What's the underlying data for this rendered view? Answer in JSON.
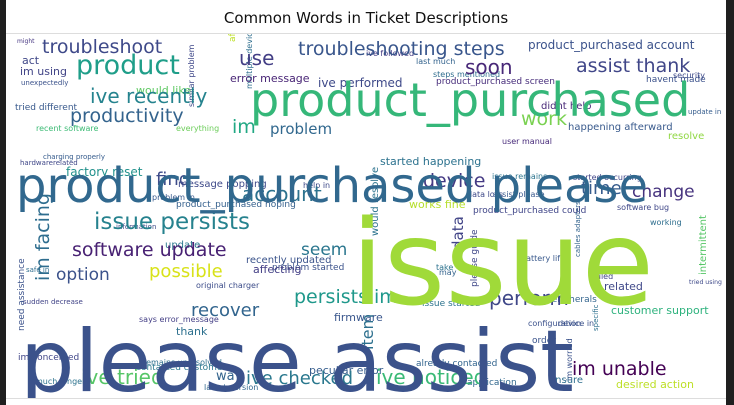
{
  "chart_data": {
    "type": "wordcloud",
    "title": "Common Words in Ticket Descriptions",
    "colormap": "viridis",
    "background": "#ffffff",
    "words": [
      {
        "text": "issue",
        "weight": 100,
        "color": "#a0da39"
      },
      {
        "text": "please assist",
        "weight": 92,
        "color": "#3b528b"
      },
      {
        "text": "product_purchased please",
        "weight": 70,
        "color": "#31688e"
      },
      {
        "text": "product_purchased",
        "weight": 52,
        "color": "#35b779"
      },
      {
        "text": "product",
        "weight": 28,
        "color": "#1f9e89"
      },
      {
        "text": "troubleshooting steps",
        "weight": 22,
        "color": "#39568c"
      },
      {
        "text": "issue persists",
        "weight": 24,
        "color": "#26828e"
      },
      {
        "text": "troubleshoot",
        "weight": 20,
        "color": "#3e4989"
      },
      {
        "text": "ive recently",
        "weight": 20,
        "color": "#25838e"
      },
      {
        "text": "productivity",
        "weight": 20,
        "color": "#33638d"
      },
      {
        "text": "software update",
        "weight": 19,
        "color": "#482173"
      },
      {
        "text": "assist thank",
        "weight": 18,
        "color": "#404688"
      },
      {
        "text": "ive noticed",
        "weight": 20,
        "color": "#3aba76"
      },
      {
        "text": "ive checked",
        "weight": 18,
        "color": "#2a788e"
      },
      {
        "text": "ive tried",
        "weight": 18,
        "color": "#56c667"
      },
      {
        "text": "im unable",
        "weight": 18,
        "color": "#440154"
      },
      {
        "text": "persists im",
        "weight": 17,
        "color": "#1f988b"
      },
      {
        "text": "account",
        "weight": 17,
        "color": "#2c728e"
      },
      {
        "text": "im facing",
        "weight": 19,
        "color": "#2e6d8e"
      },
      {
        "text": "perform",
        "weight": 17,
        "color": "#3f4788"
      },
      {
        "text": "device",
        "weight": 16,
        "color": "#443983"
      },
      {
        "text": "recover",
        "weight": 16,
        "color": "#32658e"
      },
      {
        "text": "possible",
        "weight": 16,
        "color": "#d8e219"
      },
      {
        "text": "option",
        "weight": 16,
        "color": "#3b528b"
      },
      {
        "text": "change",
        "weight": 15,
        "color": "#46337e"
      },
      {
        "text": "time",
        "weight": 15,
        "color": "#365c8d"
      },
      {
        "text": "use",
        "weight": 18,
        "color": "#433e85"
      },
      {
        "text": "soon",
        "weight": 16,
        "color": "#482878"
      },
      {
        "text": "work",
        "weight": 16,
        "color": "#7ad151"
      },
      {
        "text": "problem",
        "weight": 14,
        "color": "#31688e"
      },
      {
        "text": "seem",
        "weight": 15,
        "color": "#2a768e"
      },
      {
        "text": "find",
        "weight": 15,
        "color": "#3e4c8a"
      },
      {
        "text": "data",
        "weight": 14,
        "color": "#414487"
      },
      {
        "text": "item",
        "weight": 14,
        "color": "#2d708e"
      },
      {
        "text": "im",
        "weight": 16,
        "color": "#22a884"
      },
      {
        "text": "product_purchased account",
        "weight": 11,
        "color": "#3b528b"
      },
      {
        "text": "factory reset",
        "weight": 11,
        "color": "#21918c"
      },
      {
        "text": "ive performed",
        "weight": 11,
        "color": "#3e4989"
      },
      {
        "text": "error message",
        "weight": 10,
        "color": "#482475"
      },
      {
        "text": "would like",
        "weight": 9,
        "color": "#5ec962"
      },
      {
        "text": "product_purchased hoping",
        "weight": 9,
        "color": "#35608d"
      },
      {
        "text": "product_purchased could",
        "weight": 9,
        "color": "#404688"
      },
      {
        "text": "started happening",
        "weight": 9,
        "color": "#2c728e"
      },
      {
        "text": "happening afterward",
        "weight": 8,
        "color": "#38598c"
      },
      {
        "text": "customer support",
        "weight": 9,
        "color": "#2db27d"
      },
      {
        "text": "firmware",
        "weight": 9,
        "color": "#39568c"
      },
      {
        "text": "related",
        "weight": 9,
        "color": "#3f4889"
      },
      {
        "text": "affecting",
        "weight": 9,
        "color": "#433e85"
      },
      {
        "text": "works fine",
        "weight": 8,
        "color": "#b5de2b"
      },
      {
        "text": "desired action",
        "weight": 8,
        "color": "#bddf26"
      },
      {
        "text": "didnt help",
        "weight": 8,
        "color": "#482878"
      },
      {
        "text": "ensure",
        "weight": 8,
        "color": "#2e6e8e"
      },
      {
        "text": "way",
        "weight": 9,
        "color": "#33638d"
      },
      {
        "text": "need assistance",
        "weight": 7,
        "color": "#3b528b"
      },
      {
        "text": "peculiar error",
        "weight": 8,
        "color": "#365d8d"
      },
      {
        "text": "im concerned",
        "weight": 7,
        "color": "#404688"
      },
      {
        "text": "contacted customer",
        "weight": 7,
        "color": "#2a778e"
      },
      {
        "text": "already contacted",
        "weight": 7,
        "color": "#32648e"
      },
      {
        "text": "message popping",
        "weight": 7,
        "color": "#3e4989"
      },
      {
        "text": "recently updated",
        "weight": 7,
        "color": "#3a538b"
      },
      {
        "text": "issue started",
        "weight": 7,
        "color": "#2c738e"
      },
      {
        "text": "assist please",
        "weight": 6,
        "color": "#38588c"
      },
      {
        "text": "remains unresolved",
        "weight": 6,
        "color": "#2e6f8e"
      },
      {
        "text": "started occurring",
        "weight": 6,
        "color": "#404588"
      },
      {
        "text": "user manual",
        "weight": 6,
        "color": "#472a7a"
      },
      {
        "text": "havent made",
        "weight": 6,
        "color": "#3b518b"
      },
      {
        "text": "security",
        "weight": 6,
        "color": "#3e4a89"
      },
      {
        "text": "thank",
        "weight": 8,
        "color": "#2d708e"
      },
      {
        "text": "might",
        "weight": 5,
        "color": "#453581"
      },
      {
        "text": "act",
        "weight": 7,
        "color": "#3f4788"
      },
      {
        "text": "im using",
        "weight": 7,
        "color": "#414487"
      },
      {
        "text": "last much",
        "weight": 5,
        "color": "#33638d"
      },
      {
        "text": "steps mentioned",
        "weight": 6,
        "color": "#2e6d8e"
      },
      {
        "text": "product_purchased screen",
        "weight": 6,
        "color": "#472d7b"
      },
      {
        "text": "issue remains",
        "weight": 6,
        "color": "#2b748e"
      },
      {
        "text": "data loss",
        "weight": 5,
        "color": "#3e4989"
      },
      {
        "text": "update",
        "weight": 8,
        "color": "#2a788e"
      },
      {
        "text": "problem started",
        "weight": 6,
        "color": "#3b528b"
      },
      {
        "text": "original charger",
        "weight": 6,
        "color": "#3d4d8a"
      },
      {
        "text": "says error_message",
        "weight": 6,
        "color": "#433e85"
      },
      {
        "text": "latest version",
        "weight": 6,
        "color": "#31688e"
      },
      {
        "text": "much longer",
        "weight": 6,
        "color": "#2c728e"
      },
      {
        "text": "unexpectedly",
        "weight": 5,
        "color": "#3b528b"
      },
      {
        "text": "tried different",
        "weight": 6,
        "color": "#38598c"
      },
      {
        "text": "recent software",
        "weight": 6,
        "color": "#3cbb75"
      },
      {
        "text": "charging properly",
        "weight": 5,
        "color": "#365c8d"
      },
      {
        "text": "hardwarerelated",
        "weight": 5,
        "color": "#3f4788"
      },
      {
        "text": "sudden decrease",
        "weight": 5,
        "color": "#414487"
      },
      {
        "text": "safe in",
        "weight": 5,
        "color": "#2e6d8e"
      },
      {
        "text": "ive followed",
        "weight": 6,
        "color": "#443a83"
      },
      {
        "text": "similar problem",
        "weight": 5,
        "color": "#3f4889"
      },
      {
        "text": "multiple devices",
        "weight": 5,
        "color": "#2e6e8e"
      },
      {
        "text": "configuration",
        "weight": 6,
        "color": "#3b518b"
      },
      {
        "text": "cables adapters",
        "weight": 5,
        "color": "#33638d"
      },
      {
        "text": "peripherals",
        "weight": 6,
        "color": "#32648e"
      },
      {
        "text": "battery life",
        "weight": 5,
        "color": "#38588c"
      },
      {
        "text": "tried using",
        "weight": 5,
        "color": "#3e4989"
      },
      {
        "text": "intermittent",
        "weight": 6,
        "color": "#56c667"
      },
      {
        "text": "order",
        "weight": 6,
        "color": "#3a538b"
      },
      {
        "text": "application",
        "weight": 5,
        "color": "#31688e"
      },
      {
        "text": "specific",
        "weight": 5,
        "color": "#2d708e"
      },
      {
        "text": "im worried",
        "weight": 5,
        "color": "#3b528b"
      },
      {
        "text": "would resolve",
        "weight": 6,
        "color": "#2c738e"
      },
      {
        "text": "please guide",
        "weight": 6,
        "color": "#3f4788"
      },
      {
        "text": "afterward could",
        "weight": 6,
        "color": "#bddf26"
      },
      {
        "text": "information",
        "weight": 5,
        "color": "#3e4a89"
      },
      {
        "text": "update in",
        "weight": 5,
        "color": "#365d8d"
      },
      {
        "text": "resolve",
        "weight": 6,
        "color": "#90d743"
      },
      {
        "text": "everything",
        "weight": 5,
        "color": "#6ccd5a"
      },
      {
        "text": "device in",
        "weight": 5,
        "color": "#3b528b"
      },
      {
        "text": "software bug",
        "weight": 5,
        "color": "#3f4788"
      },
      {
        "text": "working",
        "weight": 5,
        "color": "#2e6e8e"
      },
      {
        "text": "failed",
        "weight": 5,
        "color": "#414487"
      },
      {
        "text": "may",
        "weight": 5,
        "color": "#33638d"
      },
      {
        "text": "take",
        "weight": 5,
        "color": "#2c728e"
      },
      {
        "text": "help in",
        "weight": 5,
        "color": "#3e4989"
      },
      {
        "text": "problem in",
        "weight": 5,
        "color": "#38598c"
      }
    ]
  }
}
